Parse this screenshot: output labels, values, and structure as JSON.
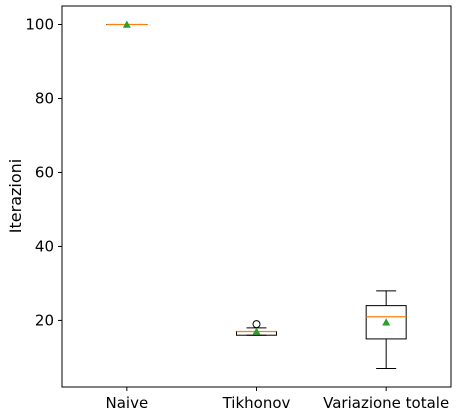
{
  "chart_data": {
    "type": "box",
    "title": "",
    "xlabel": "",
    "ylabel": "Iterazioni",
    "ylim": [
      2,
      105
    ],
    "yticks": [
      20,
      40,
      60,
      80,
      100
    ],
    "categories": [
      "Naive",
      "Tikhonov",
      "Variazione totale"
    ],
    "boxes": [
      {
        "category": "Naive",
        "whisker_low": 100,
        "q1": 100,
        "median": 100,
        "q3": 100,
        "whisker_high": 100,
        "mean": 100,
        "outliers": []
      },
      {
        "category": "Tikhonov",
        "whisker_low": 16,
        "q1": 16,
        "median": 17,
        "q3": 17,
        "whisker_high": 18,
        "mean": 17,
        "outliers": [
          19
        ]
      },
      {
        "category": "Variazione totale",
        "whisker_low": 7,
        "q1": 15,
        "median": 21,
        "q3": 24,
        "whisker_high": 28,
        "mean": 19.5,
        "outliers": []
      }
    ],
    "colors": {
      "median": "#ff7f0e",
      "mean": "#2ca02c",
      "box": "#000000"
    }
  }
}
